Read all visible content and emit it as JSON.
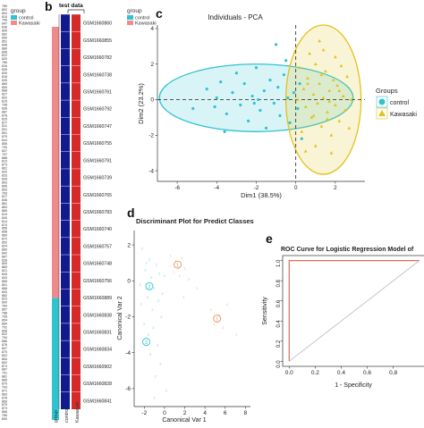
{
  "panels": {
    "a_legend": {
      "title": "group",
      "items": [
        "control",
        "Kawasaki"
      ],
      "colors": [
        "#2ec4cf",
        "#f08a8a"
      ]
    },
    "a_row_numbers": [
      "789",
      "892",
      "804",
      "810",
      "796",
      "847",
      "838",
      "805",
      "862",
      "850",
      "851",
      "848",
      "880",
      "845",
      "812",
      "829",
      "786",
      "816",
      "839",
      "830",
      "818",
      "835",
      "889",
      "859",
      "868",
      "827",
      "832",
      "815",
      "798",
      "836",
      "887",
      "878",
      "825",
      "877",
      "811",
      "831",
      "891",
      "879",
      "844",
      "855",
      "790",
      "837",
      "797",
      "888",
      "813",
      "873",
      "861",
      "820",
      "833",
      "826",
      "803",
      "806",
      "853",
      "799",
      "817",
      "846",
      "881",
      "863",
      "885",
      "819",
      "840",
      "814",
      "874",
      "856",
      "858",
      "869",
      "872",
      "852",
      "824",
      "860",
      "842",
      "867",
      "828",
      "809",
      "883",
      "821",
      "849",
      "843",
      "865",
      "801",
      "866",
      "893",
      "882",
      "823",
      "800",
      "784",
      "857",
      "788",
      "795",
      "854",
      "884",
      "792",
      "808",
      "822",
      "794",
      "886",
      "876",
      "807",
      "870",
      "802",
      "864",
      "802",
      "874",
      "887",
      "791",
      "881",
      "885",
      "870",
      "793",
      "871",
      "883",
      "878",
      "869",
      "879",
      "873",
      "866",
      "785",
      "890"
    ],
    "b": {
      "letter": "b",
      "header": "test data",
      "legend_title": "group",
      "legend_items": [
        "control",
        "Kawasaki"
      ],
      "legend_colors": [
        "#2ec4cf",
        "#f08a8a"
      ],
      "bottom_labels": [
        "group",
        "control",
        "Kawasaki"
      ],
      "samples": [
        "GSM1660860",
        "GSM1660855",
        "GSM1660782",
        "GSM1660738",
        "GSM1660761",
        "GSM1660792",
        "GSM1660747",
        "GSM1660755",
        "GSM1660791",
        "GSM1660739",
        "GSM1660765",
        "GSM1660783",
        "GSM1660740",
        "GSM1660757",
        "GSM1660748",
        "GSM1660756",
        "GSM1660889",
        "GSM1660838",
        "GSM1660831",
        "GSM1660834",
        "GSM1660902",
        "GSM1660828",
        "GSM1660841"
      ],
      "heat_colors": {
        "blue": "#121a8f",
        "red": "#d62a2a"
      }
    },
    "c": {
      "letter": "c",
      "chart_data": {
        "type": "scatter",
        "title": "Individuals - PCA",
        "xlabel": "Dim1 (38.5%)",
        "ylabel": "Dim2 (23.2%)",
        "xticks": [
          -6,
          -4,
          -2,
          0,
          2
        ],
        "yticks": [
          -4,
          -2,
          0,
          2,
          4
        ],
        "xlim": [
          -7,
          3.5
        ],
        "ylim": [
          -4.6,
          4.2
        ],
        "legend_title": "Groups",
        "legend_items": [
          "control",
          "Kawasaki"
        ],
        "series": [
          {
            "name": "control",
            "color": "#2ec4cf",
            "marker": "circle",
            "points": [
              [
                -4.5,
                0.6
              ],
              [
                -4.1,
                -0.4
              ],
              [
                -4.0,
                0.1
              ],
              [
                -3.8,
                1.0
              ],
              [
                -3.5,
                -0.8
              ],
              [
                -3.2,
                0.4
              ],
              [
                -3.0,
                1.5
              ],
              [
                -2.8,
                -0.3
              ],
              [
                -2.6,
                0.9
              ],
              [
                -2.4,
                -1.2
              ],
              [
                -2.2,
                0.2
              ],
              [
                -2.0,
                1.8
              ],
              [
                -1.8,
                -0.6
              ],
              [
                -1.6,
                0.5
              ],
              [
                -1.5,
                -1.6
              ],
              [
                -1.3,
                1.1
              ],
              [
                -1.1,
                -0.2
              ],
              [
                -0.9,
                0.7
              ],
              [
                -0.8,
                -0.9
              ],
              [
                -0.6,
                1.4
              ],
              [
                -0.4,
                0.1
              ],
              [
                -0.3,
                -1.3
              ],
              [
                -0.1,
                0.4
              ],
              [
                0.1,
                -0.5
              ],
              [
                0.2,
                0.9
              ],
              [
                -1.9,
                0.0
              ],
              [
                -2.1,
                -0.2
              ],
              [
                -5.2,
                -0.5
              ],
              [
                -0.5,
                2.2
              ],
              [
                -1.0,
                3.1
              ],
              [
                0.3,
                -2.2
              ],
              [
                -3.6,
                -1.8
              ]
            ]
          },
          {
            "name": "Kawasaki",
            "color": "#e3c21a",
            "marker": "triangle",
            "points": [
              [
                0.2,
                1.8
              ],
              [
                0.4,
                0.6
              ],
              [
                0.5,
                -0.4
              ],
              [
                0.6,
                1.2
              ],
              [
                0.8,
                -1.0
              ],
              [
                0.9,
                0.3
              ],
              [
                1.0,
                2.0
              ],
              [
                1.1,
                -0.2
              ],
              [
                1.2,
                0.9
              ],
              [
                1.3,
                -1.5
              ],
              [
                1.4,
                0.1
              ],
              [
                1.5,
                1.6
              ],
              [
                1.6,
                -0.7
              ],
              [
                1.7,
                0.5
              ],
              [
                1.8,
                -2.0
              ],
              [
                1.9,
                1.1
              ],
              [
                2.0,
                -0.3
              ],
              [
                2.1,
                0.8
              ],
              [
                2.2,
                -1.2
              ],
              [
                2.3,
                1.9
              ],
              [
                2.4,
                0.2
              ],
              [
                2.5,
                -0.6
              ],
              [
                2.6,
                1.3
              ],
              [
                0.3,
                -1.8
              ],
              [
                0.7,
                2.6
              ],
              [
                1.0,
                -2.6
              ],
              [
                1.4,
                2.8
              ],
              [
                1.8,
                -3.0
              ],
              [
                2.0,
                2.4
              ],
              [
                2.7,
                -1.6
              ],
              [
                0.1,
                0.0
              ],
              [
                0.5,
                -2.9
              ],
              [
                1.2,
                3.3
              ],
              [
                1.6,
                -1.1
              ],
              [
                2.2,
                0.5
              ],
              [
                0.9,
                -0.9
              ],
              [
                1.3,
                1.4
              ],
              [
                2.8,
                0.0
              ],
              [
                0.6,
                0.9
              ],
              [
                1.7,
                -0.1
              ]
            ]
          }
        ],
        "ellipses": [
          {
            "group": "control",
            "cx": -2.0,
            "cy": 0.1,
            "rx": 4.9,
            "ry": 1.9,
            "color": "#2ec4cf"
          },
          {
            "group": "Kawasaki",
            "cx": 1.4,
            "cy": 0.0,
            "rx": 1.9,
            "ry": 4.2,
            "color": "#e3c21a"
          }
        ]
      }
    },
    "d": {
      "letter": "d",
      "chart_data": {
        "type": "scatter",
        "title": "Discriminant Plot for Predict Classes",
        "xlabel": "Canonical Var 1",
        "ylabel": "Canonical Var 2",
        "xticks": [
          -2,
          0,
          2,
          4,
          6,
          8
        ],
        "yticks": [
          -6,
          -4,
          -2,
          0,
          2
        ],
        "xlim": [
          -3,
          8.5
        ],
        "ylim": [
          -7,
          2.8
        ],
        "centroids": [
          {
            "label": "2",
            "x": -1.5,
            "y": -0.3,
            "color": "#2ec4cf"
          },
          {
            "label": "2",
            "x": -1.8,
            "y": -3.4,
            "color": "#2ec4cf"
          },
          {
            "label": "1",
            "x": 1.3,
            "y": 0.9,
            "color": "#e89060"
          },
          {
            "label": "1",
            "x": 5.2,
            "y": -2.1,
            "color": "#e89060"
          }
        ],
        "series": [
          {
            "name": "2",
            "color": "#2ec4cf",
            "points": [
              [
                -2.2,
                1.8
              ],
              [
                -1.9,
                0.6
              ],
              [
                -1.7,
                -0.9
              ],
              [
                -1.5,
                1.2
              ],
              [
                -1.3,
                0.2
              ],
              [
                -1.2,
                -1.6
              ],
              [
                -1.0,
                -0.4
              ],
              [
                -0.8,
                0.9
              ],
              [
                -0.6,
                -1.1
              ],
              [
                -0.5,
                0.4
              ],
              [
                -2.4,
                -0.2
              ],
              [
                -2.0,
                -2.4
              ],
              [
                -1.6,
                -3.0
              ],
              [
                -1.4,
                -4.1
              ],
              [
                -1.1,
                -2.6
              ],
              [
                -0.9,
                -5.3
              ],
              [
                -0.7,
                -3.6
              ],
              [
                -0.4,
                -4.6
              ],
              [
                -2.3,
                -1.3
              ],
              [
                -0.2,
                -0.7
              ],
              [
                0.0,
                0.3
              ],
              [
                -1.8,
                1.0
              ],
              [
                -0.3,
                -2.0
              ],
              [
                0.2,
                -6.1
              ],
              [
                -1.0,
                -6.5
              ]
            ]
          },
          {
            "name": "1",
            "color": "#e89060",
            "points": [
              [
                0.6,
                1.4
              ],
              [
                0.9,
                0.5
              ],
              [
                1.1,
                1.1
              ],
              [
                1.5,
                0.3
              ],
              [
                1.7,
                1.3
              ],
              [
                2.0,
                0.7
              ],
              [
                2.4,
                0.1
              ],
              [
                4.6,
                -1.6
              ],
              [
                4.9,
                -2.4
              ],
              [
                5.4,
                -1.9
              ],
              [
                5.8,
                -2.6
              ],
              [
                6.2,
                -1.3
              ],
              [
                3.2,
                -0.4
              ],
              [
                7.1,
                -3.0
              ],
              [
                1.9,
                -0.9
              ]
            ]
          }
        ]
      }
    },
    "e": {
      "letter": "e",
      "chart_data": {
        "type": "line",
        "title": "ROC Curve for Logistic Regression Model of",
        "xlabel": "1 - Specificity",
        "ylabel": "Sensitivity",
        "xticks": [
          0.0,
          0.2,
          0.4,
          0.6,
          0.8
        ],
        "yticks": [
          0.0,
          0.2,
          0.4,
          0.6,
          0.8,
          1.0
        ],
        "xlim": [
          -0.05,
          1.05
        ],
        "ylim": [
          -0.05,
          1.05
        ],
        "series": [
          {
            "name": "ROC",
            "color": "#e06a5a",
            "x": [
              0.0,
              0.0,
              0.02,
              1.0
            ],
            "y": [
              0.0,
              1.0,
              1.0,
              1.0
            ]
          },
          {
            "name": "reference",
            "color": "#b8b8b8",
            "x": [
              0.0,
              1.0
            ],
            "y": [
              0.0,
              1.0
            ]
          }
        ]
      }
    }
  }
}
